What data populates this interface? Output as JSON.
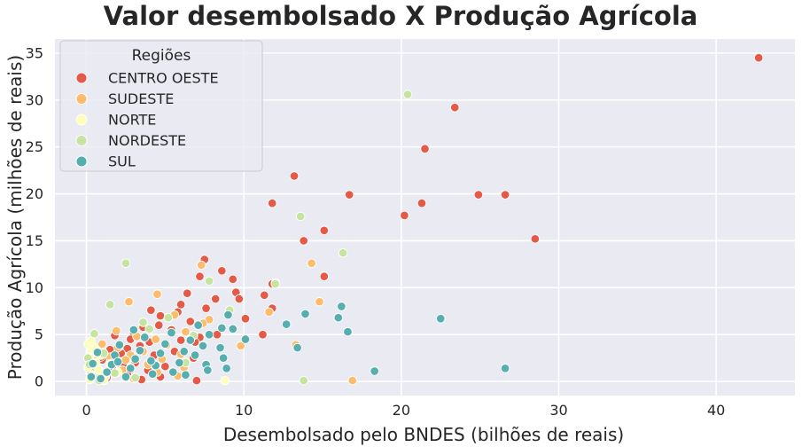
{
  "chart_data": {
    "type": "scatter",
    "title": "Valor desembolsado X Produção Agrícola",
    "xlabel": "Desembolsado pelo BNDES (bilhões de reais)",
    "ylabel": "Produção Agrícola (milhões de reais)",
    "xlim": [
      -2,
      45
    ],
    "ylim": [
      -1.5,
      36.5
    ],
    "xticks": [
      0,
      10,
      20,
      30,
      40
    ],
    "yticks": [
      0,
      5,
      10,
      15,
      20,
      25,
      30,
      35
    ],
    "xtick_labels": [
      "0",
      "10",
      "20",
      "30",
      "40"
    ],
    "ytick_labels": [
      "0",
      "5",
      "10",
      "15",
      "20",
      "25",
      "30",
      "35"
    ],
    "grid": true,
    "background": "#eaeaf2",
    "legend": {
      "title": "Regiões",
      "placement": "top-left"
    },
    "series": [
      {
        "name": "CENTRO OESTE",
        "color": "#e55a47",
        "points": [
          [
            42.7,
            34.5
          ],
          [
            23.4,
            29.2
          ],
          [
            21.5,
            24.8
          ],
          [
            13.2,
            21.9
          ],
          [
            16.7,
            19.9
          ],
          [
            24.9,
            19.9
          ],
          [
            26.6,
            19.9
          ],
          [
            11.8,
            19.0
          ],
          [
            21.3,
            19.0
          ],
          [
            20.2,
            17.7
          ],
          [
            28.5,
            15.2
          ],
          [
            15.1,
            16.1
          ],
          [
            13.8,
            15.0
          ],
          [
            15.1,
            11.2
          ],
          [
            7.5,
            13.0
          ],
          [
            8.6,
            11.8
          ],
          [
            9.3,
            10.9
          ],
          [
            11.8,
            10.4
          ],
          [
            7.2,
            11.2
          ],
          [
            6.4,
            9.4
          ],
          [
            11.3,
            9.2
          ],
          [
            9.5,
            9.5
          ],
          [
            8.2,
            8.8
          ],
          [
            9.7,
            8.8
          ],
          [
            6.0,
            8.2
          ],
          [
            11.8,
            7.8
          ],
          [
            7.6,
            7.8
          ],
          [
            5.8,
            7.4
          ],
          [
            4.7,
            7.0
          ],
          [
            10.1,
            6.7
          ],
          [
            6.6,
            6.4
          ],
          [
            4.6,
            6.0
          ],
          [
            3.6,
            5.8
          ],
          [
            5.4,
            5.5
          ],
          [
            8.3,
            5.0
          ],
          [
            3.0,
            5.2
          ],
          [
            1.8,
            4.9
          ],
          [
            11.2,
            5.0
          ],
          [
            7.2,
            4.7
          ],
          [
            6.9,
            4.2
          ],
          [
            4.0,
            4.2
          ],
          [
            3.4,
            3.8
          ],
          [
            2.6,
            3.5
          ],
          [
            1.5,
            3.4
          ],
          [
            2.2,
            3.0
          ],
          [
            5.6,
            3.2
          ],
          [
            4.3,
            2.8
          ],
          [
            6.8,
            2.5
          ],
          [
            1.0,
            2.3
          ],
          [
            3.1,
            2.0
          ],
          [
            2.4,
            1.6
          ],
          [
            5.0,
            1.6
          ],
          [
            1.7,
            1.2
          ],
          [
            2.6,
            0.8
          ],
          [
            4.7,
            0.5
          ],
          [
            7.0,
            0.1
          ],
          [
            3.5,
            0.2
          ],
          [
            1.3,
            0.4
          ],
          [
            0.6,
            0.8
          ],
          [
            4.1,
            7.6
          ],
          [
            5.2,
            6.8
          ],
          [
            2.8,
            4.5
          ],
          [
            6.0,
            4.4
          ],
          [
            0.9,
            2.6
          ],
          [
            3.9,
            1.2
          ]
        ]
      },
      {
        "name": "SUDESTE",
        "color": "#fdbb6c",
        "points": [
          [
            14.3,
            12.6
          ],
          [
            7.3,
            12.4
          ],
          [
            12.0,
            10.5
          ],
          [
            4.5,
            9.3
          ],
          [
            2.7,
            8.5
          ],
          [
            14.8,
            8.5
          ],
          [
            11.6,
            7.4
          ],
          [
            5.6,
            7.1
          ],
          [
            7.8,
            6.6
          ],
          [
            7.4,
            6.2
          ],
          [
            6.3,
            5.3
          ],
          [
            9.8,
            3.8
          ],
          [
            13.3,
            3.9
          ],
          [
            16.9,
            0.1
          ],
          [
            1.9,
            5.4
          ],
          [
            3.2,
            4.8
          ],
          [
            4.4,
            4.5
          ],
          [
            5.1,
            3.9
          ],
          [
            1.0,
            4.0
          ],
          [
            2.0,
            3.6
          ],
          [
            3.6,
            3.2
          ],
          [
            2.8,
            2.8
          ],
          [
            1.5,
            2.6
          ],
          [
            4.8,
            2.4
          ],
          [
            0.5,
            2.2
          ],
          [
            3.9,
            1.8
          ],
          [
            6.2,
            1.5
          ],
          [
            2.3,
            1.2
          ],
          [
            1.1,
            0.8
          ],
          [
            5.8,
            0.6
          ],
          [
            0.3,
            1.0
          ],
          [
            3.0,
            0.3
          ],
          [
            4.5,
            1.0
          ],
          [
            2.5,
            2.3
          ],
          [
            6.0,
            2.9
          ]
        ]
      },
      {
        "name": "NORTE",
        "color": "#fefeb9",
        "points": [
          [
            0.1,
            4.0
          ],
          [
            0.3,
            3.2
          ],
          [
            0.2,
            2.6
          ],
          [
            0.6,
            2.0
          ],
          [
            0.1,
            1.5
          ],
          [
            0.8,
            1.2
          ],
          [
            0.4,
            0.7
          ],
          [
            1.2,
            0.5
          ],
          [
            0.2,
            0.2
          ],
          [
            0.9,
            2.8
          ],
          [
            1.5,
            1.9
          ],
          [
            0.5,
            3.6
          ],
          [
            2.0,
            1.0
          ],
          [
            8.8,
            0.1
          ],
          [
            1.1,
            0.1
          ],
          [
            0.3,
            4.3
          ]
        ]
      },
      {
        "name": "NORDESTE",
        "color": "#c4e49f",
        "points": [
          [
            20.4,
            30.6
          ],
          [
            13.6,
            17.6
          ],
          [
            16.3,
            13.7
          ],
          [
            2.5,
            12.6
          ],
          [
            7.8,
            10.7
          ],
          [
            12.0,
            10.4
          ],
          [
            1.5,
            8.2
          ],
          [
            9.1,
            7.6
          ],
          [
            5.2,
            6.8
          ],
          [
            3.6,
            6.3
          ],
          [
            0.5,
            5.1
          ],
          [
            0.1,
            2.5
          ],
          [
            0.2,
            1.8
          ],
          [
            0.4,
            0.5
          ],
          [
            1.8,
            0.9
          ],
          [
            2.8,
            1.5
          ],
          [
            13.8,
            0.1
          ],
          [
            3.1,
            0.4
          ],
          [
            6.3,
            2.0
          ],
          [
            4.0,
            5.6
          ],
          [
            6.8,
            4.9
          ],
          [
            1.1,
            3.0
          ],
          [
            0.8,
            0.1
          ]
        ]
      },
      {
        "name": "SUL",
        "color": "#57aeaf",
        "points": [
          [
            26.6,
            1.4
          ],
          [
            22.5,
            6.7
          ],
          [
            16.2,
            8.0
          ],
          [
            16.6,
            5.3
          ],
          [
            16.0,
            6.8
          ],
          [
            13.9,
            7.2
          ],
          [
            12.7,
            6.1
          ],
          [
            18.3,
            1.1
          ],
          [
            13.4,
            3.6
          ],
          [
            10.1,
            4.5
          ],
          [
            9.3,
            5.6
          ],
          [
            8.6,
            5.7
          ],
          [
            9.0,
            7.1
          ],
          [
            8.5,
            3.6
          ],
          [
            8.7,
            2.5
          ],
          [
            8.9,
            1.4
          ],
          [
            7.8,
            5.0
          ],
          [
            7.4,
            3.8
          ],
          [
            6.9,
            2.8
          ],
          [
            7.6,
            1.8
          ],
          [
            7.7,
            1.2
          ],
          [
            6.6,
            4.4
          ],
          [
            6.2,
            3.2
          ],
          [
            5.9,
            2.0
          ],
          [
            5.4,
            5.2
          ],
          [
            5.0,
            4.0
          ],
          [
            4.7,
            3.0
          ],
          [
            4.4,
            1.7
          ],
          [
            4.2,
            0.8
          ],
          [
            3.7,
            4.7
          ],
          [
            3.4,
            3.3
          ],
          [
            3.1,
            2.4
          ],
          [
            2.8,
            1.4
          ],
          [
            2.5,
            0.5
          ],
          [
            2.1,
            3.9
          ],
          [
            1.8,
            2.8
          ],
          [
            1.6,
            1.8
          ],
          [
            1.3,
            1.0
          ],
          [
            0.9,
            0.3
          ],
          [
            0.7,
            3.1
          ],
          [
            0.4,
            1.9
          ],
          [
            0.3,
            0.5
          ],
          [
            5.5,
            1.0
          ],
          [
            6.3,
            0.7
          ],
          [
            4.1,
            2.2
          ],
          [
            7.1,
            6.0
          ],
          [
            3.0,
            5.5
          ],
          [
            2.0,
            2.1
          ]
        ]
      }
    ]
  }
}
